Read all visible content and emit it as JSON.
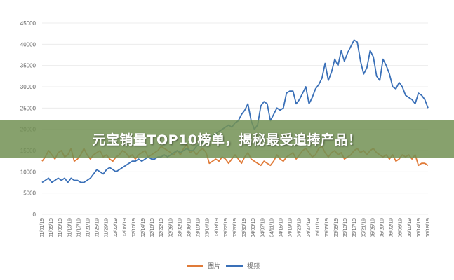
{
  "banner": {
    "title": "元宝销量TOP10榜单，揭秘最受追捧产品！"
  },
  "colors": {
    "series_image": "#e07b39",
    "series_video": "#3a70b8",
    "grid": "#ececec",
    "banner": "#739155"
  },
  "chart_data": {
    "type": "line",
    "ylim": [
      0,
      45000
    ],
    "yticks": [
      0,
      5000,
      10000,
      15000,
      20000,
      25000,
      30000,
      35000,
      40000,
      45000
    ],
    "xticks": [
      "01/01/19",
      "01/05/19",
      "01/09/19",
      "01/13/19",
      "01/17/19",
      "01/21/19",
      "01/25/19",
      "01/29/19",
      "02/02/19",
      "02/06/19",
      "02/10/19",
      "02/14/19",
      "02/18/19",
      "02/22/19",
      "02/26/19",
      "03/02/19",
      "03/06/19",
      "03/10/19",
      "03/14/19",
      "03/18/19",
      "03/22/19",
      "03/26/19",
      "03/30/19",
      "04/03/19",
      "04/07/19",
      "04/11/19",
      "04/15/19",
      "04/19/19",
      "04/23/19",
      "04/27/19",
      "05/01/19",
      "05/05/19",
      "05/09/19",
      "05/13/19",
      "05/17/19",
      "05/21/19",
      "05/25/19",
      "05/29/19",
      "06/02/19",
      "06/06/19",
      "06/10/19",
      "06/14/19",
      "06/18/19"
    ],
    "legend_position": "bottom",
    "grid": true,
    "series": [
      {
        "name": "图片",
        "color": "#e07b39",
        "values": [
          12500,
          13500,
          15000,
          14000,
          13000,
          14500,
          15000,
          13500,
          14000,
          15500,
          12500,
          13000,
          14000,
          15500,
          14000,
          13000,
          14000,
          14500,
          15000,
          13500,
          14000,
          13000,
          12500,
          13500,
          14000,
          15000,
          14500,
          13500,
          14000,
          13000,
          14000,
          14500,
          15000,
          13500,
          14000,
          14500,
          15000,
          16000,
          15500,
          15000,
          14500,
          14000,
          15000,
          14000,
          15500,
          16500,
          14500,
          15000,
          14000,
          15000,
          15500,
          14500,
          12000,
          12500,
          13000,
          12500,
          13500,
          13000,
          12000,
          13000,
          14000,
          13000,
          12000,
          13500,
          14500,
          13000,
          12500,
          12000,
          11500,
          12500,
          12000,
          11500,
          12500,
          14000,
          13000,
          12500,
          13500,
          14000,
          14500,
          13000,
          14000,
          15000,
          15500,
          14500,
          13500,
          14000,
          15500,
          16000,
          14500,
          13500,
          14500,
          15000,
          14000,
          14500,
          13000,
          13500,
          14000,
          15000,
          15500,
          14500,
          15000,
          14000,
          15000,
          15500,
          14500,
          14000,
          13500,
          14000,
          13000,
          14000,
          12500,
          13000,
          14000,
          13500,
          14000,
          13000,
          14000,
          11500,
          12000,
          12000,
          11500
        ]
      },
      {
        "name": "视频",
        "color": "#3a70b8",
        "values": [
          7500,
          8000,
          8500,
          7500,
          8000,
          8500,
          8000,
          8500,
          7500,
          8500,
          8000,
          8000,
          7500,
          7500,
          8000,
          8500,
          9500,
          10500,
          10000,
          9500,
          10500,
          11000,
          10500,
          10000,
          10500,
          11000,
          11500,
          12000,
          12500,
          12500,
          13000,
          12500,
          13000,
          13500,
          13000,
          13000,
          13500,
          13500,
          14000,
          13500,
          14000,
          14500,
          15000,
          14500,
          15000,
          15500,
          15000,
          15000,
          16000,
          16500,
          17000,
          17500,
          18000,
          18500,
          19000,
          19500,
          20000,
          20500,
          21000,
          20500,
          21500,
          22000,
          23500,
          24500,
          26000,
          22000,
          20000,
          21000,
          25500,
          26500,
          26000,
          22000,
          23500,
          25000,
          24500,
          25000,
          28500,
          29000,
          29000,
          26000,
          27000,
          28500,
          30000,
          26000,
          27500,
          29500,
          30500,
          32000,
          35500,
          31500,
          33500,
          36500,
          35000,
          38500,
          36000,
          38000,
          39500,
          41000,
          40500,
          36000,
          33000,
          34500,
          38500,
          37000,
          32500,
          31500,
          36500,
          35000,
          33000,
          30000,
          29500,
          31000,
          30000,
          28000,
          27500,
          27000,
          26000,
          28500,
          28000,
          27000,
          25000
        ]
      }
    ]
  }
}
